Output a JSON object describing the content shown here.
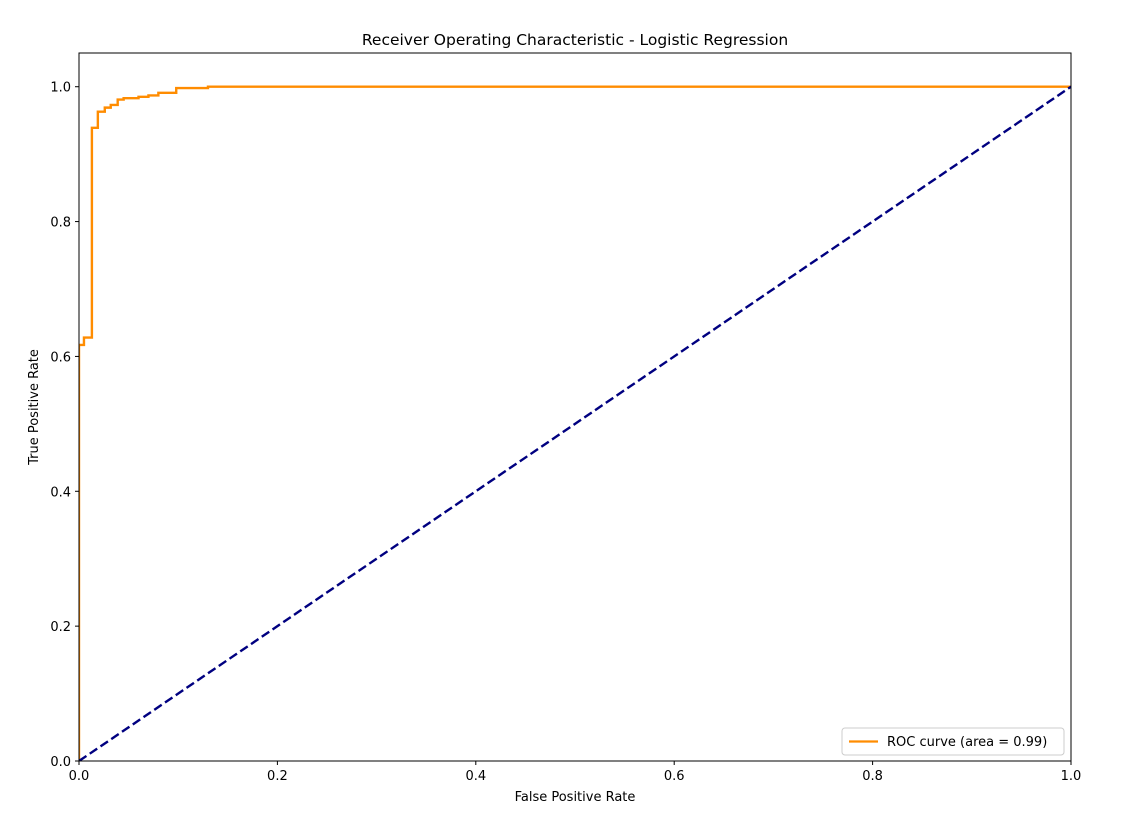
{
  "chart_data": {
    "type": "line",
    "title": "Receiver Operating Characteristic - Logistic Regression",
    "xlabel": "False Positive Rate",
    "ylabel": "True Positive Rate",
    "xlim": [
      0.0,
      1.0
    ],
    "ylim": [
      0.0,
      1.05
    ],
    "xticks": [
      0.0,
      0.2,
      0.4,
      0.6,
      0.8,
      1.0
    ],
    "xtick_labels": [
      "0.0",
      "0.2",
      "0.4",
      "0.6",
      "0.8",
      "1.0"
    ],
    "yticks": [
      0.0,
      0.2,
      0.4,
      0.6,
      0.8,
      1.0
    ],
    "ytick_labels": [
      "0.0",
      "0.2",
      "0.4",
      "0.6",
      "0.8",
      "1.0"
    ],
    "grid": false,
    "legend_position": "lower right",
    "series": [
      {
        "name": "ROC curve (area = 0.99)",
        "style": "solid",
        "color": "#ff8c00",
        "x": [
          0.0,
          0.0,
          0.0,
          0.005,
          0.005,
          0.013,
          0.013,
          0.019,
          0.019,
          0.026,
          0.026,
          0.032,
          0.032,
          0.039,
          0.039,
          0.045,
          0.045,
          0.06,
          0.06,
          0.07,
          0.07,
          0.08,
          0.08,
          0.098,
          0.098,
          0.13,
          0.13,
          1.0
        ],
        "y": [
          0.0,
          0.0,
          0.617,
          0.617,
          0.628,
          0.628,
          0.939,
          0.939,
          0.963,
          0.963,
          0.969,
          0.969,
          0.973,
          0.973,
          0.981,
          0.981,
          0.983,
          0.983,
          0.985,
          0.985,
          0.987,
          0.987,
          0.991,
          0.991,
          0.998,
          0.998,
          1.0,
          1.0
        ]
      },
      {
        "style": "dashed",
        "color": "#000080",
        "x": [
          0.0,
          1.0
        ],
        "y": [
          0.0,
          1.0
        ]
      }
    ]
  }
}
